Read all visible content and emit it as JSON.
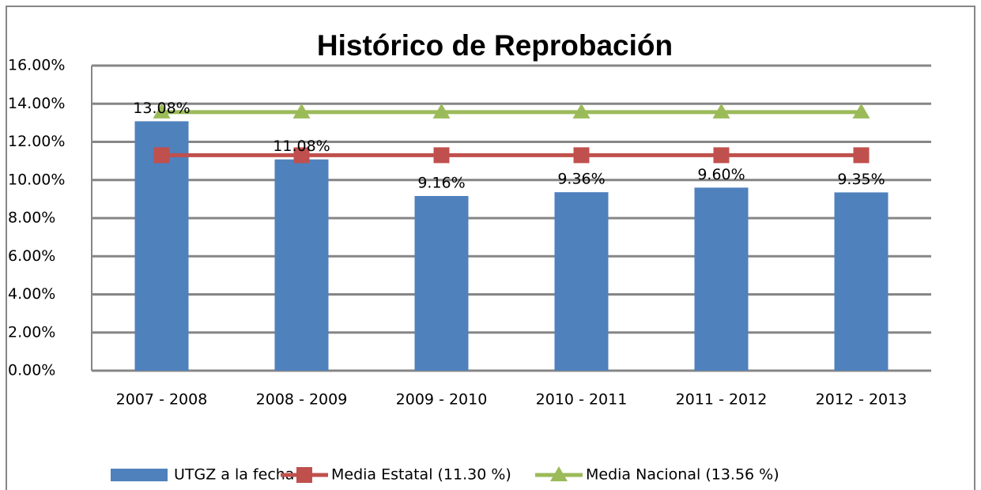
{
  "chart_data": {
    "type": "bar",
    "title": "Histórico de Reprobación",
    "categories": [
      "2007  - 2008",
      "2008  - 2009",
      "2009 - 2010",
      "2010 - 2011",
      "2011 - 2012",
      "2012 - 2013"
    ],
    "series": [
      {
        "name": "UTGZ a la fecha",
        "type": "bar",
        "color": "#4f81bd",
        "values": [
          13.08,
          11.08,
          9.16,
          9.36,
          9.6,
          9.35
        ],
        "value_labels": [
          "13.08%",
          "11.08%",
          "9.16%",
          "9.36%",
          "9.60%",
          "9.35%"
        ]
      },
      {
        "name": "Media Estatal (11.30 %)",
        "type": "line",
        "marker": "square",
        "color": "#c0504d",
        "values": [
          11.3,
          11.3,
          11.3,
          11.3,
          11.3,
          11.3
        ]
      },
      {
        "name": "Media Nacional (13.56 %)",
        "type": "line",
        "marker": "triangle",
        "color": "#9bbb59",
        "values": [
          13.56,
          13.56,
          13.56,
          13.56,
          13.56,
          13.56
        ]
      }
    ],
    "ylim": [
      0,
      16
    ],
    "yticks": [
      {
        "value": 0,
        "label": "0.00%"
      },
      {
        "value": 2,
        "label": "2.00%"
      },
      {
        "value": 4,
        "label": "4.00%"
      },
      {
        "value": 6,
        "label": "6.00%"
      },
      {
        "value": 8,
        "label": "8.00%"
      },
      {
        "value": 10,
        "label": "10.00%"
      },
      {
        "value": 12,
        "label": "12.00%"
      },
      {
        "value": 14,
        "label": "14.00%"
      },
      {
        "value": 16,
        "label": "16.00%"
      }
    ],
    "grid": true,
    "legend": "bottom"
  }
}
